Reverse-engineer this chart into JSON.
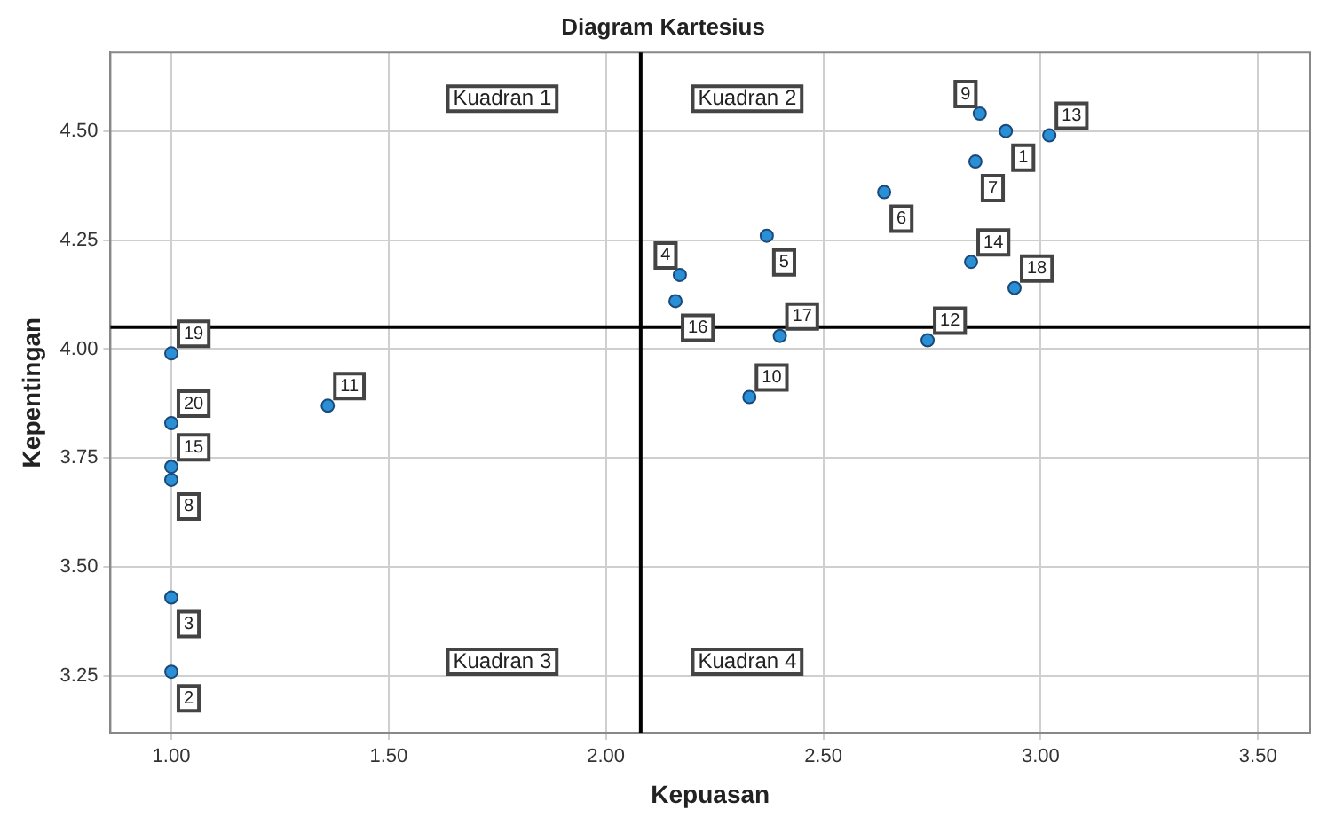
{
  "chart_data": {
    "type": "scatter",
    "title": "Diagram Kartesius",
    "xlabel": "Kepuasan",
    "ylabel": "Kepentingan",
    "x": [
      2.92,
      1.0,
      1.0,
      2.17,
      2.37,
      2.64,
      2.85,
      1.0,
      2.86,
      2.33,
      1.36,
      2.74,
      3.02,
      2.84,
      1.0,
      2.16,
      2.4,
      2.94,
      1.0,
      1.0
    ],
    "values": [
      4.5,
      3.26,
      3.43,
      4.17,
      4.26,
      4.36,
      4.43,
      3.7,
      4.54,
      3.89,
      3.87,
      4.02,
      4.49,
      4.2,
      3.73,
      4.11,
      4.03,
      4.14,
      3.99,
      3.83
    ],
    "color": "#2b8fd6",
    "marker": "circle",
    "grid": true,
    "xlim": [
      0.86,
      3.62
    ],
    "ylim": [
      3.12,
      4.68
    ],
    "xticks": [
      {
        "value": 1,
        "label": "1.00"
      },
      {
        "value": 1.5,
        "label": "1.50"
      },
      {
        "value": 2,
        "label": "2.00"
      },
      {
        "value": 2.5,
        "label": "2.50"
      },
      {
        "value": 3,
        "label": "3.00"
      },
      {
        "value": 3.5,
        "label": "3.50"
      }
    ],
    "yticks": [
      {
        "value": 3.25,
        "label": "3.25"
      },
      {
        "value": 3.5,
        "label": "3.50"
      },
      {
        "value": 3.75,
        "label": "3.75"
      },
      {
        "value": 4,
        "label": "4.00"
      },
      {
        "value": 4.25,
        "label": "4.25"
      },
      {
        "value": 4.5,
        "label": "4.50"
      }
    ],
    "ref_lines": [
      {
        "axis": "x",
        "value": 2.08,
        "color": "#000000"
      },
      {
        "axis": "y",
        "value": 4.05,
        "color": "#000000"
      }
    ],
    "annotations": [
      "Kuadran 1",
      "Kuadran 2",
      "Kuadran 3",
      "Kuadran 4",
      {
        "text": "1",
        "x": 2.92,
        "y": 4.5
      },
      {
        "text": "2",
        "x": 1.0,
        "y": 3.26
      },
      {
        "text": "3",
        "x": 1.0,
        "y": 3.43
      },
      {
        "text": "4",
        "x": 2.17,
        "y": 4.17
      },
      {
        "text": "5",
        "x": 2.37,
        "y": 4.26
      },
      {
        "text": "6",
        "x": 2.64,
        "y": 4.36
      },
      {
        "text": "7",
        "x": 2.85,
        "y": 4.43
      },
      {
        "text": "8",
        "x": 1.0,
        "y": 3.7
      },
      {
        "text": "9",
        "x": 2.86,
        "y": 4.54
      },
      {
        "text": "10",
        "x": 2.33,
        "y": 3.89
      },
      {
        "text": "11",
        "x": 1.36,
        "y": 3.87
      },
      {
        "text": "12",
        "x": 2.74,
        "y": 4.02
      },
      {
        "text": "13",
        "x": 3.02,
        "y": 4.49
      },
      {
        "text": "14",
        "x": 2.84,
        "y": 4.2
      },
      {
        "text": "15",
        "x": 1.0,
        "y": 3.73
      },
      {
        "text": "16",
        "x": 2.16,
        "y": 4.11
      },
      {
        "text": "17",
        "x": 2.4,
        "y": 4.03
      },
      {
        "text": "18",
        "x": 2.94,
        "y": 4.14
      },
      {
        "text": "19",
        "x": 1.0,
        "y": 3.99
      },
      {
        "text": "20",
        "x": 1.0,
        "y": 3.83
      }
    ]
  }
}
